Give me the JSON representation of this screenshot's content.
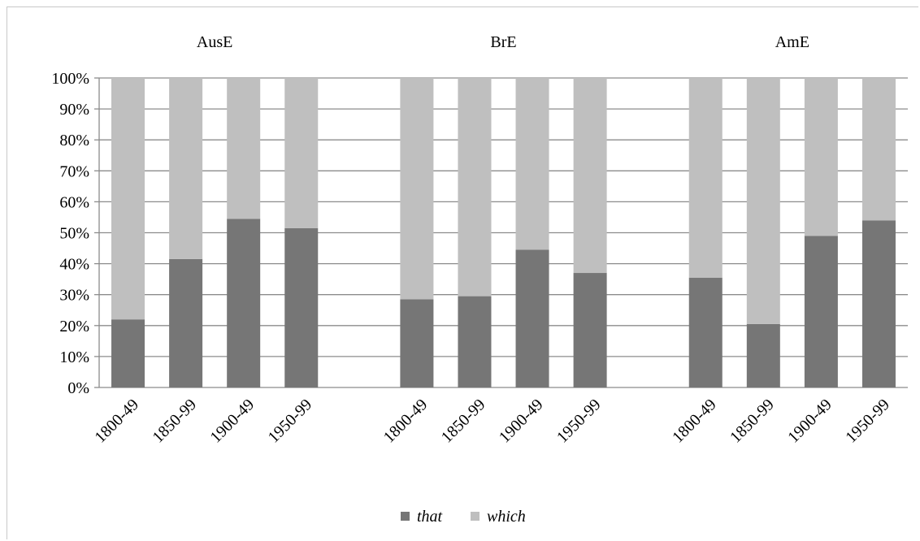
{
  "chart_data": {
    "type": "bar",
    "stacked": true,
    "percent": true,
    "groups": [
      "AusE",
      "BrE",
      "AmE"
    ],
    "categories": [
      "1800-49",
      "1850-99",
      "1900-49",
      "1950-99"
    ],
    "series": [
      {
        "name": "that",
        "color": "#767676",
        "values": [
          [
            22,
            41.5,
            54.5,
            51.5
          ],
          [
            28.5,
            29.5,
            44.5,
            37
          ],
          [
            35.5,
            20.5,
            49,
            54
          ]
        ]
      },
      {
        "name": "which",
        "color": "#bfbfbf",
        "values": [
          [
            78,
            58.5,
            45.5,
            48.5
          ],
          [
            71.5,
            70.5,
            55.5,
            63
          ],
          [
            64.5,
            79.5,
            51,
            46
          ]
        ]
      }
    ],
    "ylim": [
      0,
      100
    ],
    "yticks": [
      "0%",
      "10%",
      "20%",
      "30%",
      "40%",
      "50%",
      "60%",
      "70%",
      "80%",
      "90%",
      "100%"
    ],
    "grid": true,
    "legend_position": "bottom"
  }
}
